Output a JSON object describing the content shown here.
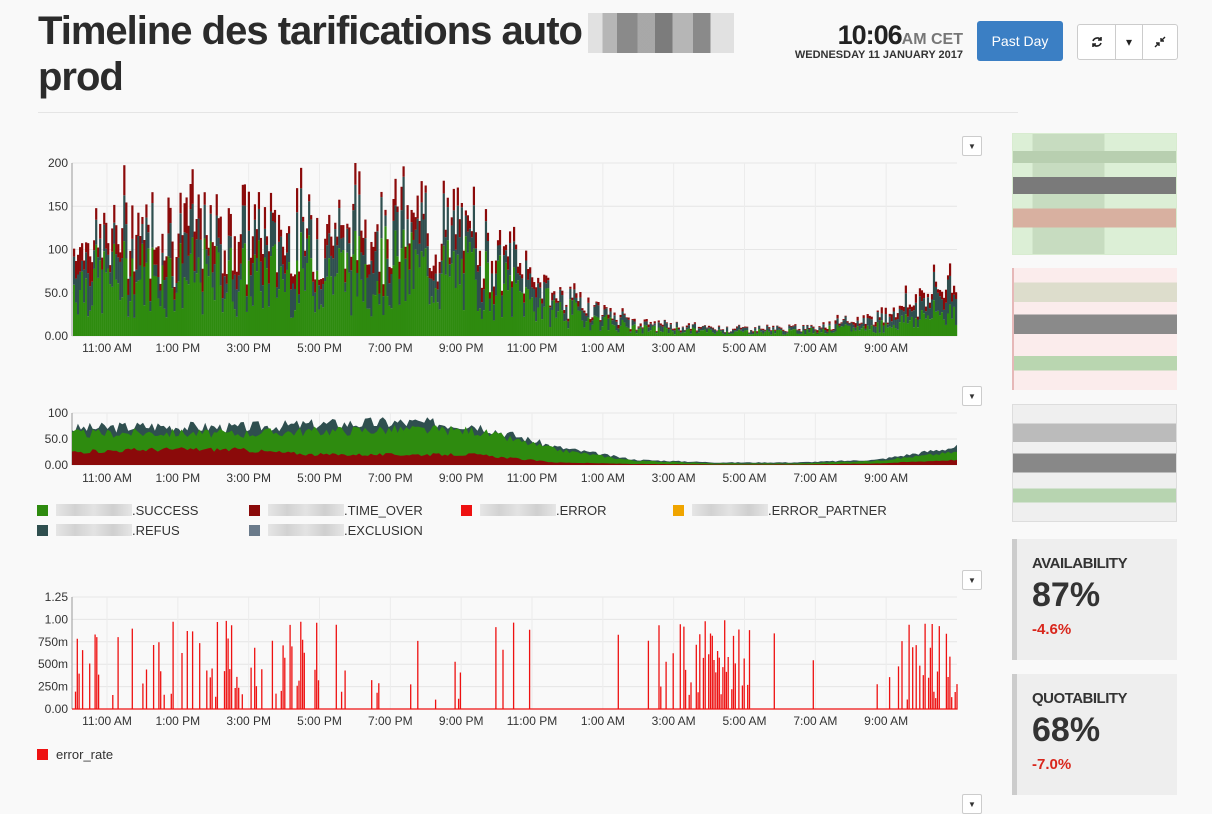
{
  "header": {
    "title_line1": "Timeline des tarifications auto",
    "title_line2": "prod",
    "time": "10:06",
    "ampm": "AM CET",
    "date": "WEDNESDAY 11 JANUARY 2017",
    "range_button": "Past Day"
  },
  "icons": {
    "refresh": "refresh-icon",
    "caret": "caret-down-icon",
    "collapse": "collapse-icon"
  },
  "colors": {
    "success": "#2e8b0f",
    "time_over": "#8b0a0a",
    "error": "#ee1111",
    "error_partner": "#f0a500",
    "refus": "#2f4f4f",
    "exclusion": "#6b7b8b",
    "accent": "#3b7fc4"
  },
  "legend1": [
    {
      "label": ".SUCCESS",
      "color": "#2e8b0f"
    },
    {
      "label": ".TIME_OVER",
      "color": "#8b0a0a"
    },
    {
      "label": ".ERROR",
      "color": "#ee1111"
    },
    {
      "label": ".ERROR_PARTNER",
      "color": "#f0a500"
    },
    {
      "label": ".REFUS",
      "color": "#2f4f4f"
    },
    {
      "label": ".EXCLUSION",
      "color": "#6b7b8b"
    }
  ],
  "legend2": [
    {
      "label": "error_rate",
      "color": "#ee1111"
    }
  ],
  "stats": [
    {
      "label": "AVAILABILITY",
      "value": "87%",
      "change": "-4.6%"
    },
    {
      "label": "QUOTABILITY",
      "value": "68%",
      "change": "-7.0%"
    }
  ],
  "chart_data": [
    {
      "type": "bar",
      "x": [
        "11:00 AM",
        "1:00 PM",
        "3:00 PM",
        "5:00 PM",
        "7:00 PM",
        "9:00 PM",
        "11:00 PM",
        "1:00 AM",
        "3:00 AM",
        "5:00 AM",
        "7:00 AM",
        "9:00 AM"
      ],
      "ylim": [
        0,
        200
      ],
      "yticks": [
        "200",
        "150",
        "100",
        "50.0",
        "0.00"
      ],
      "series": [
        {
          "name": ".SUCCESS",
          "values": [
            60,
            70,
            65,
            72,
            75,
            68,
            30,
            8,
            5,
            5,
            10,
            30
          ]
        },
        {
          "name": ".REFUS",
          "values": [
            30,
            35,
            30,
            35,
            40,
            35,
            15,
            5,
            3,
            3,
            8,
            25
          ]
        },
        {
          "name": ".TIME_OVER",
          "values": [
            20,
            25,
            30,
            15,
            20,
            15,
            5,
            2,
            1,
            1,
            4,
            10
          ]
        }
      ]
    },
    {
      "type": "area",
      "x": [
        "11:00 AM",
        "1:00 PM",
        "3:00 PM",
        "5:00 PM",
        "7:00 PM",
        "9:00 PM",
        "11:00 PM",
        "1:00 AM",
        "3:00 AM",
        "5:00 AM",
        "7:00 AM",
        "9:00 AM"
      ],
      "ylim": [
        0,
        100
      ],
      "yticks": [
        "100",
        "50.0",
        "0.00"
      ],
      "series": [
        {
          "name": ".SUCCESS",
          "values": [
            60,
            62,
            60,
            65,
            68,
            66,
            30,
            8,
            3,
            3,
            8,
            25
          ]
        },
        {
          "name": ".REFUS",
          "values": [
            70,
            75,
            72,
            78,
            82,
            78,
            35,
            10,
            5,
            5,
            10,
            35
          ]
        },
        {
          "name": ".TIME_OVER",
          "values": [
            25,
            30,
            30,
            20,
            20,
            20,
            5,
            2,
            1,
            1,
            3,
            10
          ]
        }
      ]
    },
    {
      "type": "bar",
      "x": [
        "11:00 AM",
        "1:00 PM",
        "3:00 PM",
        "5:00 PM",
        "7:00 PM",
        "9:00 PM",
        "11:00 PM",
        "1:00 AM",
        "3:00 AM",
        "5:00 AM",
        "7:00 AM",
        "9:00 AM"
      ],
      "ylim": [
        0,
        1.25
      ],
      "yticks": [
        "1.25",
        "1.00",
        "750m",
        "500m",
        "250m",
        "0.00"
      ],
      "series": [
        {
          "name": "error_rate",
          "values": [
            0.5,
            0.4,
            0.8,
            0.3,
            0.2,
            0.1,
            0.05,
            0.02,
            0.9,
            0.01,
            0.3,
            0.9
          ]
        }
      ]
    }
  ]
}
